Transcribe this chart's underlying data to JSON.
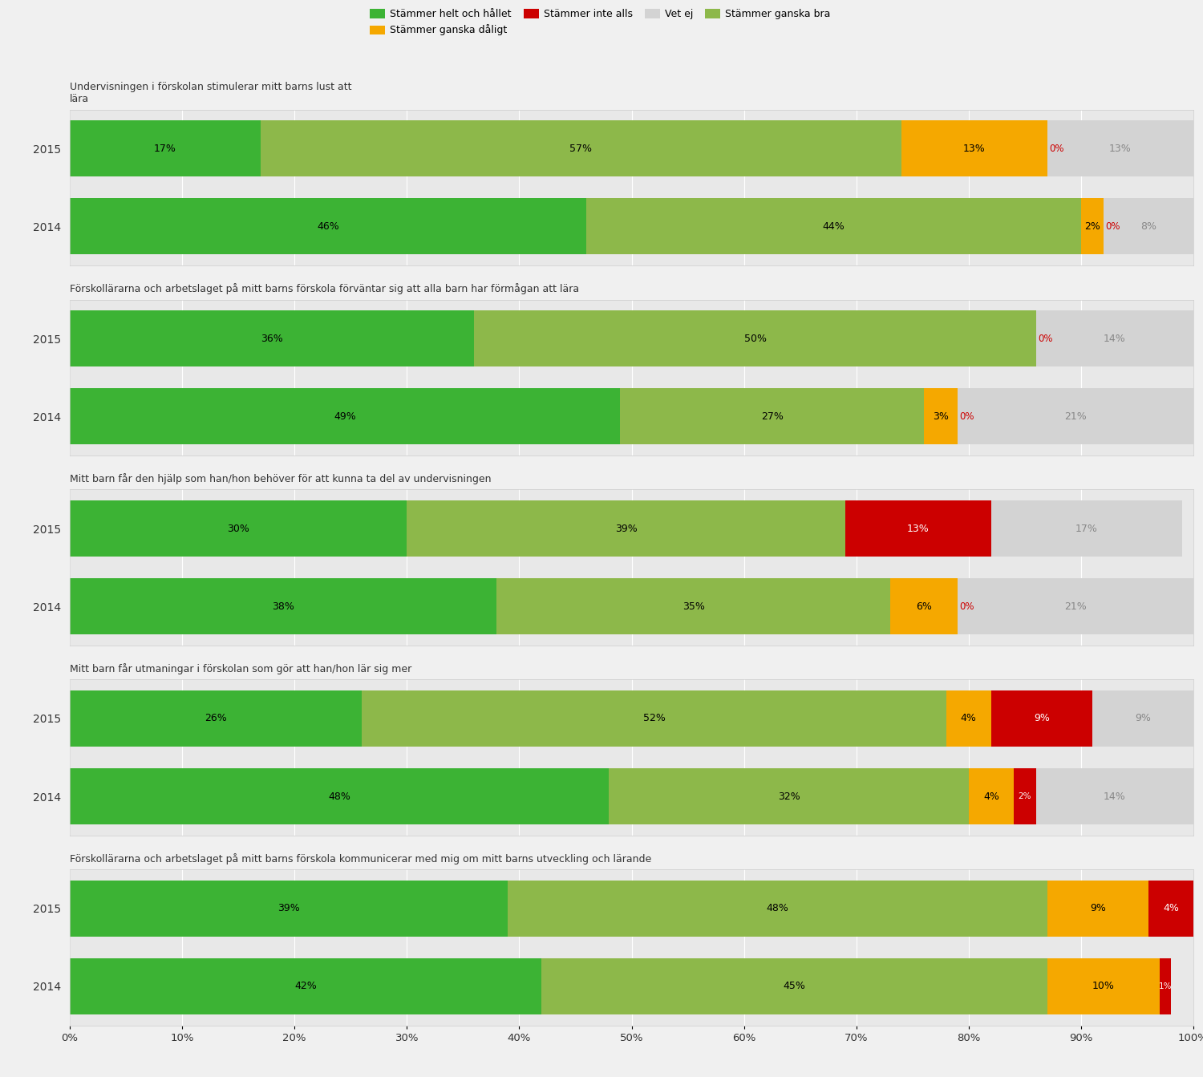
{
  "questions": [
    "Undervisningen i förskolan stimulerar mitt barns lust att\nlära",
    "Förskollärarna och arbetslaget på mitt barns förskola förväntar sig att alla barn har förmågan att lära",
    "Mitt barn får den hjälp som han/hon behöver för att kunna ta del av undervisningen",
    "Mitt barn får utmaningar i förskolan som gör att han/hon lär sig mer",
    "Förskollärarna och arbetslaget på mitt barns förskola kommunicerar med mig om mitt barns utveckling och lärande"
  ],
  "data": [
    {
      "question_idx": 0,
      "year": "2015",
      "stammer_helt": 17,
      "stammer_ganska_bra": 57,
      "stammer_ganska_daligt": 13,
      "stammer_inte_alls": 0,
      "vet_ej": 13
    },
    {
      "question_idx": 0,
      "year": "2014",
      "stammer_helt": 46,
      "stammer_ganska_bra": 44,
      "stammer_ganska_daligt": 2,
      "stammer_inte_alls": 0,
      "vet_ej": 8
    },
    {
      "question_idx": 1,
      "year": "2015",
      "stammer_helt": 36,
      "stammer_ganska_bra": 50,
      "stammer_ganska_daligt": 0,
      "stammer_inte_alls": 0,
      "vet_ej": 14
    },
    {
      "question_idx": 1,
      "year": "2014",
      "stammer_helt": 49,
      "stammer_ganska_bra": 27,
      "stammer_ganska_daligt": 3,
      "stammer_inte_alls": 0,
      "vet_ej": 21
    },
    {
      "question_idx": 2,
      "year": "2015",
      "stammer_helt": 30,
      "stammer_ganska_bra": 39,
      "stammer_ganska_daligt": 0,
      "stammer_inte_alls": 13,
      "vet_ej": 17
    },
    {
      "question_idx": 2,
      "year": "2014",
      "stammer_helt": 38,
      "stammer_ganska_bra": 35,
      "stammer_ganska_daligt": 6,
      "stammer_inte_alls": 0,
      "vet_ej": 21
    },
    {
      "question_idx": 3,
      "year": "2015",
      "stammer_helt": 26,
      "stammer_ganska_bra": 52,
      "stammer_ganska_daligt": 4,
      "stammer_inte_alls": 9,
      "vet_ej": 9
    },
    {
      "question_idx": 3,
      "year": "2014",
      "stammer_helt": 48,
      "stammer_ganska_bra": 32,
      "stammer_ganska_daligt": 4,
      "stammer_inte_alls": 2,
      "vet_ej": 14
    },
    {
      "question_idx": 4,
      "year": "2015",
      "stammer_helt": 39,
      "stammer_ganska_bra": 48,
      "stammer_ganska_daligt": 9,
      "stammer_inte_alls": 4,
      "vet_ej": 0
    },
    {
      "question_idx": 4,
      "year": "2014",
      "stammer_helt": 42,
      "stammer_ganska_bra": 45,
      "stammer_ganska_daligt": 10,
      "stammer_inte_alls": 1,
      "vet_ej": 0
    }
  ],
  "colors": {
    "stammer_helt": "#3cb334",
    "stammer_ganska_bra": "#8db84a",
    "stammer_ganska_daligt": "#f5a800",
    "stammer_inte_alls": "#cc0000",
    "vet_ej": "#d3d3d3"
  },
  "legend_labels": {
    "stammer_helt": "Stämmer helt och hållet",
    "stammer_ganska_bra": "Stämmer ganska bra",
    "stammer_ganska_daligt": "Stämmer ganska dåligt",
    "stammer_inte_alls": "Stämmer inte alls",
    "vet_ej": "Vet ej"
  },
  "background_color": "#f0f0f0",
  "panel_bg": "#e8e8e8",
  "grid_color": "#ffffff",
  "label_color_vet_ej": "#888888",
  "label_color_red": "#cc0000"
}
